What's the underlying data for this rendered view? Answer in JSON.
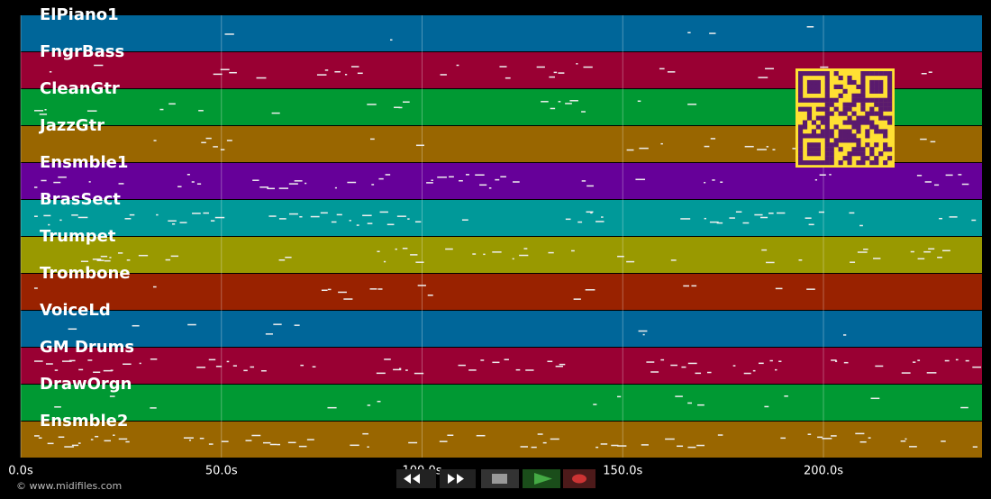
{
  "tracks": [
    {
      "name": "ElPiano1",
      "color": "#006699"
    },
    {
      "name": "FngrBass",
      "color": "#990033"
    },
    {
      "name": "CleanGtr",
      "color": "#009933"
    },
    {
      "name": "JazzGtr",
      "color": "#996600"
    },
    {
      "name": "Ensmble1",
      "color": "#660099"
    },
    {
      "name": "BrasSect",
      "color": "#009999"
    },
    {
      "name": "Trumpet",
      "color": "#999900"
    },
    {
      "name": "Trombone",
      "color": "#992200"
    },
    {
      "name": "VoiceLd",
      "color": "#006699"
    },
    {
      "name": "GM Drums",
      "color": "#990033"
    },
    {
      "name": "DrawOrgn",
      "color": "#009933"
    },
    {
      "name": "Ensmble2",
      "color": "#996600"
    }
  ],
  "timeline": {
    "xlim": [
      0,
      239.5
    ],
    "xticks": [
      {
        "value": 0,
        "label": "0.0s"
      },
      {
        "value": 50,
        "label": "50.0s"
      },
      {
        "value": 100,
        "label": "100.0s"
      },
      {
        "value": 150,
        "label": "150.0s"
      },
      {
        "value": 200,
        "label": "200.0s"
      }
    ]
  },
  "footer": "© www.midifiles.com"
}
